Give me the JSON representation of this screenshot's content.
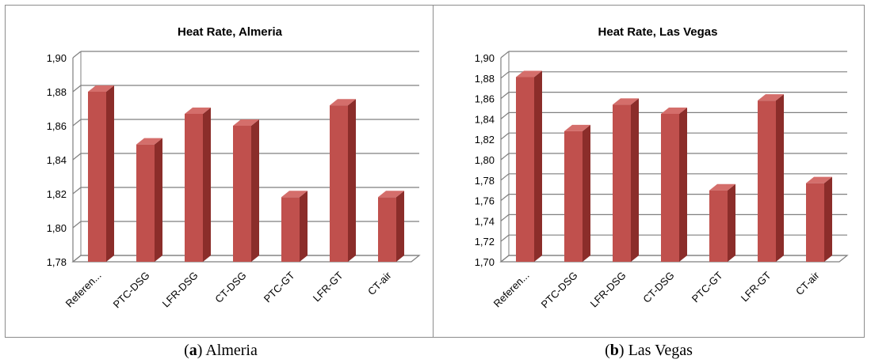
{
  "colors": {
    "bar_front": "#c0504d",
    "bar_side": "#8b2d2a",
    "bar_top": "#d46e6b",
    "grid": "#7f7f7f",
    "wall": "#ffffff"
  },
  "chart_data": [
    {
      "type": "bar",
      "style": "3d-column",
      "title": "Heat Rate, Almeria",
      "xlabel": "",
      "ylabel": "",
      "categories": [
        "Referen...",
        "PTC-DSG",
        "LFR-DSG",
        "CT-DSG",
        "PTC-GT",
        "LFR-GT",
        "CT-air"
      ],
      "values": [
        1.88,
        1.849,
        1.867,
        1.86,
        1.818,
        1.872,
        1.818
      ],
      "ylim": [
        1.78,
        1.9
      ],
      "ytick_values": [
        1.78,
        1.8,
        1.82,
        1.84,
        1.86,
        1.88,
        1.9
      ],
      "ytick_labels": [
        "1,78",
        "1,80",
        "1,82",
        "1,84",
        "1,86",
        "1,88",
        "1,90"
      ],
      "grid": true,
      "legend": "none"
    },
    {
      "type": "bar",
      "style": "3d-column",
      "title": "Heat Rate, Las Vegas",
      "xlabel": "",
      "ylabel": "",
      "categories": [
        "Referen...",
        "PTC-DSG",
        "LFR-DSG",
        "CT-DSG",
        "PTC-GT",
        "LFR-GT",
        "CT-air"
      ],
      "values": [
        1.881,
        1.828,
        1.854,
        1.845,
        1.77,
        1.858,
        1.777
      ],
      "ylim": [
        1.7,
        1.9
      ],
      "ytick_values": [
        1.7,
        1.72,
        1.74,
        1.76,
        1.78,
        1.8,
        1.82,
        1.84,
        1.86,
        1.88,
        1.9
      ],
      "ytick_labels": [
        "1,70",
        "1,72",
        "1,74",
        "1,76",
        "1,78",
        "1,80",
        "1,82",
        "1,84",
        "1,86",
        "1,88",
        "1,90"
      ],
      "grid": true,
      "legend": "none"
    }
  ],
  "captions": [
    {
      "letter": "a",
      "open": "(",
      "close": ") Almeria"
    },
    {
      "letter": "b",
      "open": "(",
      "close": ") Las Vegas"
    }
  ]
}
